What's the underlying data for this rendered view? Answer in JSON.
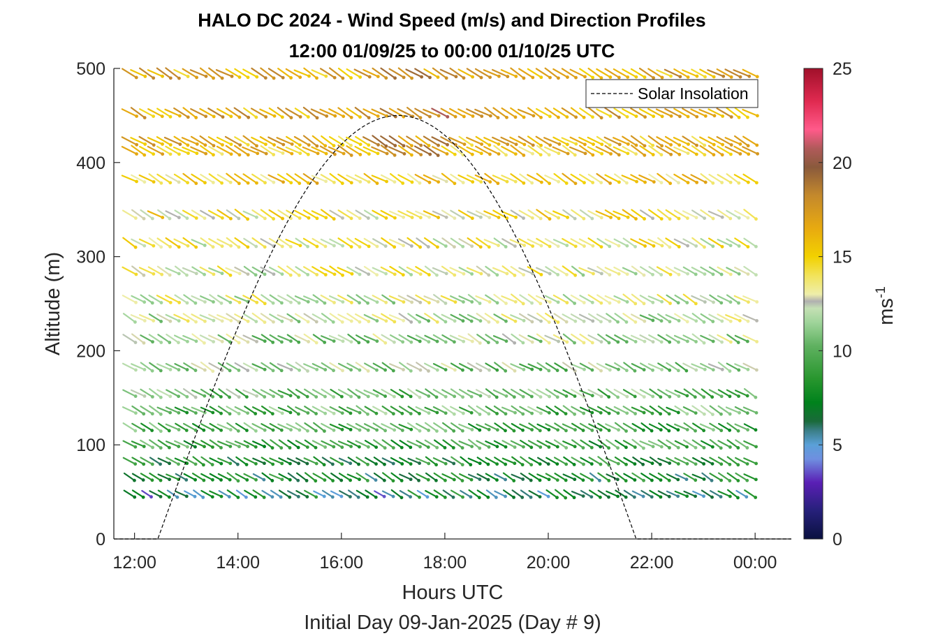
{
  "chart_data": {
    "type": "wind-barb-profile",
    "title": "HALO DC 2024 - Wind Speed (m/s) and Direction Profiles",
    "subtitle": "12:00 01/09/25 to 00:00 01/10/25  UTC",
    "xlabel": "Hours UTC",
    "xlabel2": "Initial Day 09-Jan-2025 (Day # 9)",
    "ylabel": "Altitude (m)",
    "xlim": [
      11.6,
      24.7
    ],
    "ylim": [
      0,
      500
    ],
    "x_ticks": [
      12,
      14,
      16,
      18,
      20,
      22,
      24
    ],
    "x_tick_labels": [
      "12:00",
      "14:00",
      "16:00",
      "18:00",
      "20:00",
      "22:00",
      "00:00"
    ],
    "y_ticks": [
      0,
      100,
      200,
      300,
      400,
      500
    ],
    "y_tick_labels": [
      "0",
      "100",
      "200",
      "300",
      "400",
      "500"
    ],
    "colorbar": {
      "label": "ms",
      "label_exponent": "-1",
      "range": [
        0,
        25
      ],
      "ticks": [
        0,
        5,
        10,
        15,
        20,
        25
      ],
      "tick_labels": [
        "0",
        "5",
        "10",
        "15",
        "20",
        "25"
      ]
    },
    "legend": {
      "label": "Solar Insolation",
      "position": "top-right"
    },
    "time_start_hours": 11.9,
    "time_step_hours": 0.1667,
    "time_count": 73,
    "altitudes_m": [
      45,
      63,
      80,
      98,
      116,
      134,
      152,
      180,
      210,
      232,
      252,
      282,
      312,
      342,
      380,
      410,
      420,
      450,
      492
    ],
    "wind_direction_deg_approx": 300,
    "speed_profile_ms": [
      {
        "alt": 45,
        "speed": 7
      },
      {
        "alt": 63,
        "speed": 7.5
      },
      {
        "alt": 80,
        "speed": 8
      },
      {
        "alt": 98,
        "speed": 9
      },
      {
        "alt": 116,
        "speed": 9.5
      },
      {
        "alt": 134,
        "speed": 10
      },
      {
        "alt": 152,
        "speed": 10.5
      },
      {
        "alt": 180,
        "speed": 11
      },
      {
        "alt": 210,
        "speed": 11.5
      },
      {
        "alt": 232,
        "speed": 12
      },
      {
        "alt": 252,
        "speed": 12.5
      },
      {
        "alt": 282,
        "speed": 13
      },
      {
        "alt": 312,
        "speed": 13.5
      },
      {
        "alt": 342,
        "speed": 14
      },
      {
        "alt": 380,
        "speed": 15
      },
      {
        "alt": 410,
        "speed": 15.5
      },
      {
        "alt": 420,
        "speed": 16
      },
      {
        "alt": 450,
        "speed": 16.5
      },
      {
        "alt": 492,
        "speed": 16.5
      }
    ],
    "solar_insolation": {
      "rise_hour": 12.45,
      "set_hour": 21.7,
      "peak_hour": 17.1,
      "peak_altitude_equiv": 450
    },
    "colors": {
      "scale": [
        "#0a1140",
        "#2b2a8f",
        "#5a1fb5",
        "#6f8fe0",
        "#4f8fa6",
        "#1e8f3a",
        "#00821c",
        "#46a84a",
        "#9fd49a",
        "#c9c9c9",
        "#f0e88a",
        "#f2d100",
        "#e6a512",
        "#b98236",
        "#8a5a3c",
        "#e0506a",
        "#ff5a8a",
        "#d31838",
        "#a0102a"
      ]
    }
  }
}
